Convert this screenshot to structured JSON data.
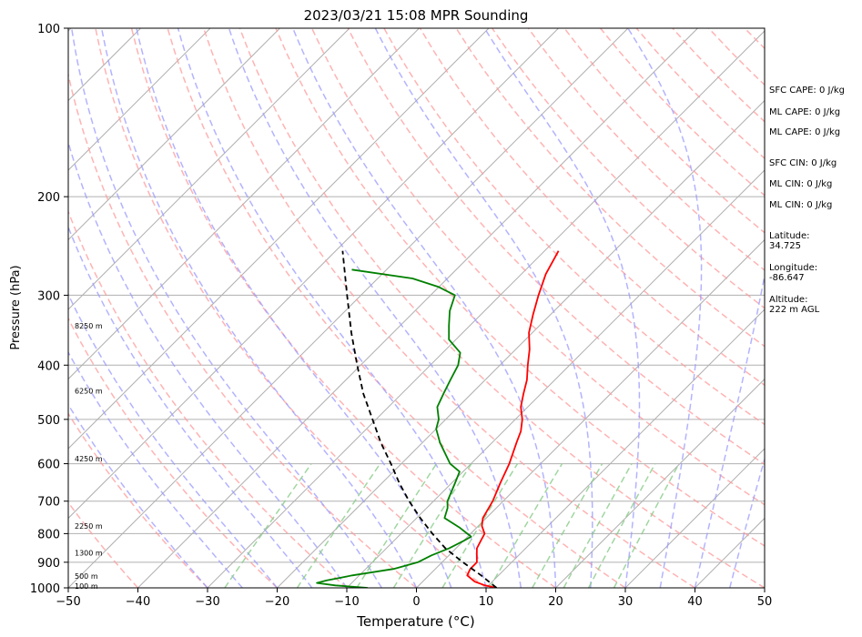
{
  "chart_data": {
    "type": "line",
    "title": "2023/03/21 15:08 MPR Sounding",
    "xlabel": "Temperature (°C)",
    "ylabel": "Pressure (hPa)",
    "xlim": [
      -50,
      50
    ],
    "ylim": [
      1000,
      100
    ],
    "y_scale": "log",
    "x_ticks": [
      -50,
      -40,
      -30,
      -20,
      -10,
      0,
      10,
      20,
      30,
      40,
      50
    ],
    "x_tick_labels": [
      "−50",
      "−40",
      "−30",
      "−20",
      "−10",
      "0",
      "10",
      "20",
      "30",
      "40",
      "50"
    ],
    "y_ticks": [
      1000,
      900,
      800,
      700,
      600,
      500,
      400,
      300,
      200,
      100
    ],
    "y_tick_labels": [
      "1000",
      "900",
      "800",
      "700",
      "600",
      "500",
      "400",
      "300",
      "200",
      "100"
    ],
    "grid": true,
    "skew": "skew-T log-P",
    "colors": {
      "temperature": "#ff0000",
      "dewpoint": "#008000",
      "parcel": "#000000",
      "dry_adiabats": "#ff9999",
      "moist_adiabats": "#9999ff",
      "mixing_ratio": "#88cc88",
      "grid": "#b0b0b0"
    },
    "series": [
      {
        "points": [
          [
            1000,
            11.5
          ],
          [
            990,
            9.5
          ],
          [
            975,
            7.5
          ],
          [
            950,
            5.5
          ],
          [
            925,
            5.0
          ],
          [
            900,
            5.0
          ],
          [
            875,
            4.0
          ],
          [
            850,
            3.0
          ],
          [
            825,
            2.5
          ],
          [
            800,
            2.0
          ],
          [
            775,
            0.5
          ],
          [
            750,
            -0.5
          ],
          [
            700,
            -1.5
          ],
          [
            650,
            -3.0
          ],
          [
            600,
            -4.5
          ],
          [
            550,
            -6.5
          ],
          [
            525,
            -7.5
          ],
          [
            500,
            -9.0
          ],
          [
            475,
            -11.0
          ],
          [
            450,
            -12.5
          ],
          [
            425,
            -14.0
          ],
          [
            400,
            -16.0
          ],
          [
            375,
            -18.0
          ],
          [
            350,
            -20.5
          ],
          [
            325,
            -22.5
          ],
          [
            300,
            -24.5
          ],
          [
            275,
            -26.5
          ],
          [
            250,
            -28.0
          ]
        ]
      },
      {
        "points": [
          [
            1000,
            -7.0
          ],
          [
            990,
            -12.0
          ],
          [
            980,
            -15.0
          ],
          [
            970,
            -14.0
          ],
          [
            960,
            -12.5
          ],
          [
            950,
            -11.0
          ],
          [
            925,
            -6.0
          ],
          [
            900,
            -3.5
          ],
          [
            875,
            -2.5
          ],
          [
            850,
            -1.0
          ],
          [
            825,
            0.0
          ],
          [
            810,
            0.5
          ],
          [
            800,
            -0.5
          ],
          [
            780,
            -2.5
          ],
          [
            750,
            -6.0
          ],
          [
            720,
            -7.0
          ],
          [
            700,
            -8.0
          ],
          [
            650,
            -9.5
          ],
          [
            620,
            -10.5
          ],
          [
            600,
            -13.0
          ],
          [
            550,
            -17.5
          ],
          [
            520,
            -20.0
          ],
          [
            500,
            -21.0
          ],
          [
            475,
            -23.0
          ],
          [
            450,
            -24.0
          ],
          [
            425,
            -25.0
          ],
          [
            400,
            -26.0
          ],
          [
            380,
            -27.5
          ],
          [
            360,
            -31.0
          ],
          [
            340,
            -33.0
          ],
          [
            320,
            -35.0
          ],
          [
            300,
            -36.5
          ],
          [
            290,
            -40.0
          ],
          [
            280,
            -45.0
          ],
          [
            270,
            -55.0
          ]
        ]
      },
      {
        "points": [
          [
            1000,
            11.5
          ],
          [
            950,
            7.5
          ],
          [
            900,
            3.0
          ],
          [
            850,
            -1.5
          ],
          [
            800,
            -5.5
          ],
          [
            750,
            -9.5
          ],
          [
            700,
            -13.5
          ],
          [
            650,
            -17.5
          ],
          [
            600,
            -21.5
          ],
          [
            550,
            -26.0
          ],
          [
            500,
            -30.5
          ],
          [
            450,
            -35.5
          ],
          [
            400,
            -40.5
          ],
          [
            350,
            -46.0
          ],
          [
            300,
            -52.0
          ],
          [
            250,
            -59.0
          ]
        ]
      }
    ],
    "height_labels": [
      {
        "pressure": 992,
        "label": "100 m"
      },
      {
        "pressure": 952,
        "label": "500 m"
      },
      {
        "pressure": 865,
        "label": "1300 m"
      },
      {
        "pressure": 775,
        "label": "2250 m"
      },
      {
        "pressure": 588,
        "label": "4250 m"
      },
      {
        "pressure": 445,
        "label": "6250 m"
      },
      {
        "pressure": 340,
        "label": "8250 m"
      }
    ]
  },
  "stats": {
    "sfc_cape": "SFC CAPE: 0 J/kg",
    "ml_cape_1": "ML CAPE: 0 J/kg",
    "ml_cape_2": "ML CAPE: 0 J/kg",
    "sfc_cin": "SFC CIN: 0 J/kg",
    "ml_cin_1": "ML CIN: 0 J/kg",
    "ml_cin_2": "ML CIN: 0 J/kg",
    "latitude_label": "Latitude:",
    "latitude_value": "34.725",
    "longitude_label": "Longitude:",
    "longitude_value": "-86.647",
    "altitude_label": "Altitude:",
    "altitude_value": "222 m AGL"
  }
}
